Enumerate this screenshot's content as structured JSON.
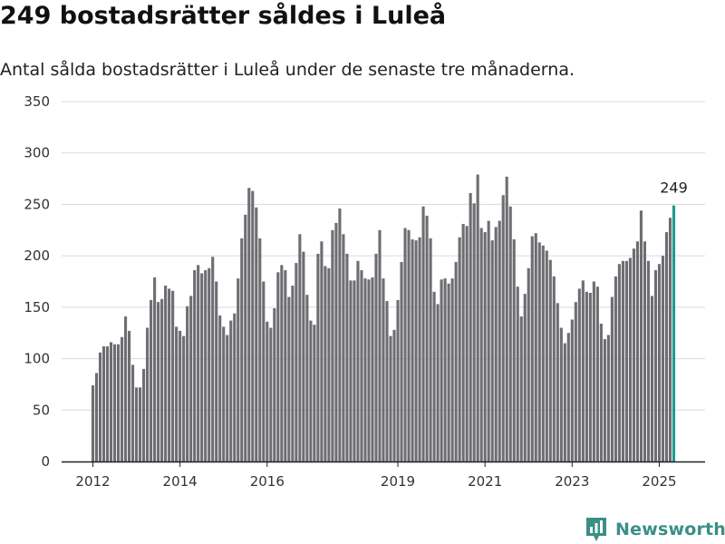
{
  "header": {
    "title": "249 bostadsrätter såldes i Luleå",
    "subtitle": "Antal sålda bostadsrätter i Luleå under de senaste tre månaderna."
  },
  "brand": {
    "name": "Newsworthy",
    "color": "#3a8f86"
  },
  "chart_data": {
    "type": "bar",
    "title": "249 bostadsrätter såldes i Luleå",
    "subtitle": "Antal sålda bostadsrätter i Luleå under de senaste tre månaderna.",
    "xlabel": "",
    "ylabel": "",
    "ylim": [
      0,
      350
    ],
    "yticks": [
      0,
      50,
      100,
      150,
      200,
      250,
      300,
      350
    ],
    "xticks": [
      "2012",
      "2014",
      "2016",
      "2019",
      "2021",
      "2023",
      "2025"
    ],
    "grid": true,
    "bar_color": "#6e6d72",
    "highlight_color": "#1b9c8c",
    "highlight_label": "249",
    "start": "2012-01",
    "values": [
      74,
      86,
      106,
      112,
      112,
      116,
      114,
      114,
      121,
      141,
      127,
      94,
      72,
      72,
      90,
      130,
      157,
      179,
      155,
      158,
      171,
      168,
      166,
      131,
      127,
      122,
      151,
      161,
      186,
      191,
      183,
      186,
      188,
      199,
      175,
      142,
      131,
      123,
      137,
      144,
      178,
      217,
      240,
      266,
      263,
      247,
      217,
      175,
      136,
      130,
      149,
      184,
      191,
      186,
      160,
      171,
      193,
      221,
      204,
      162,
      137,
      133,
      202,
      214,
      190,
      188,
      225,
      232,
      246,
      221,
      202,
      176,
      176,
      195,
      186,
      178,
      177,
      179,
      202,
      225,
      178,
      156,
      122,
      128,
      157,
      194,
      227,
      225,
      216,
      215,
      218,
      248,
      239,
      217,
      165,
      153,
      177,
      178,
      173,
      178,
      194,
      218,
      231,
      229,
      261,
      251,
      279,
      227,
      223,
      234,
      215,
      228,
      234,
      259,
      277,
      248,
      216,
      170,
      141,
      163,
      188,
      219,
      222,
      213,
      210,
      205,
      196,
      180,
      154,
      130,
      115,
      125,
      138,
      155,
      168,
      176,
      165,
      164,
      175,
      170,
      134,
      119,
      123,
      160,
      180,
      192,
      195,
      195,
      198,
      207,
      214,
      244,
      214,
      195,
      161,
      186,
      192,
      200,
      223,
      237,
      249
    ]
  }
}
